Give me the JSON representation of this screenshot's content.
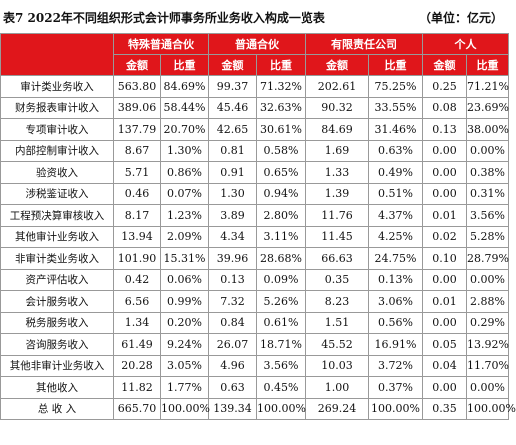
{
  "header": {
    "title": "表7  2022年不同组织形式会计师事务所业务收入构成一览表",
    "unit": "（单位：亿元）"
  },
  "table": {
    "groups": [
      "特殊普通合伙",
      "普通合伙",
      "有限责任公司",
      "个人"
    ],
    "subheaders": [
      "金额",
      "比重",
      "金额",
      "比重",
      "金额",
      "比重",
      "金额",
      "比重"
    ],
    "rows": [
      [
        "审计类业务收入",
        "563.80",
        "84.69%",
        "99.37",
        "71.32%",
        "202.61",
        "75.25%",
        "0.25",
        "71.21%"
      ],
      [
        "财务报表审计收入",
        "389.06",
        "58.44%",
        "45.46",
        "32.63%",
        "90.32",
        "33.55%",
        "0.08",
        "23.69%"
      ],
      [
        "专项审计收入",
        "137.79",
        "20.70%",
        "42.65",
        "30.61%",
        "84.69",
        "31.46%",
        "0.13",
        "38.00%"
      ],
      [
        "内部控制审计收入",
        "8.67",
        "1.30%",
        "0.81",
        "0.58%",
        "1.69",
        "0.63%",
        "0.00",
        "0.00%"
      ],
      [
        "验资收入",
        "5.71",
        "0.86%",
        "0.91",
        "0.65%",
        "1.33",
        "0.49%",
        "0.00",
        "0.38%"
      ],
      [
        "涉税鉴证收入",
        "0.46",
        "0.07%",
        "1.30",
        "0.94%",
        "1.39",
        "0.51%",
        "0.00",
        "0.31%"
      ],
      [
        "工程预决算审核收入",
        "8.17",
        "1.23%",
        "3.89",
        "2.80%",
        "11.76",
        "4.37%",
        "0.01",
        "3.56%"
      ],
      [
        "其他审计业务收入",
        "13.94",
        "2.09%",
        "4.34",
        "3.11%",
        "11.45",
        "4.25%",
        "0.02",
        "5.28%"
      ],
      [
        "非审计类业务收入",
        "101.90",
        "15.31%",
        "39.96",
        "28.68%",
        "66.63",
        "24.75%",
        "0.10",
        "28.79%"
      ],
      [
        "资产评估收入",
        "0.42",
        "0.06%",
        "0.13",
        "0.09%",
        "0.35",
        "0.13%",
        "0.00",
        "0.00%"
      ],
      [
        "会计服务收入",
        "6.56",
        "0.99%",
        "7.32",
        "5.26%",
        "8.23",
        "3.06%",
        "0.01",
        "2.88%"
      ],
      [
        "税务服务收入",
        "1.34",
        "0.20%",
        "0.84",
        "0.61%",
        "1.51",
        "0.56%",
        "0.00",
        "0.29%"
      ],
      [
        "咨询服务收入",
        "61.49",
        "9.24%",
        "26.07",
        "18.71%",
        "45.52",
        "16.91%",
        "0.05",
        "13.92%"
      ],
      [
        "其他非审计业务收入",
        "20.28",
        "3.05%",
        "4.96",
        "3.56%",
        "10.03",
        "3.72%",
        "0.04",
        "11.70%"
      ],
      [
        "其他收入",
        "11.82",
        "1.77%",
        "0.63",
        "0.45%",
        "1.00",
        "0.37%",
        "0.00",
        "0.00%"
      ],
      [
        "总 收 入",
        "665.70",
        "100.00%",
        "139.34",
        "100.00%",
        "269.24",
        "100.00%",
        "0.35",
        "100.00%"
      ]
    ]
  }
}
